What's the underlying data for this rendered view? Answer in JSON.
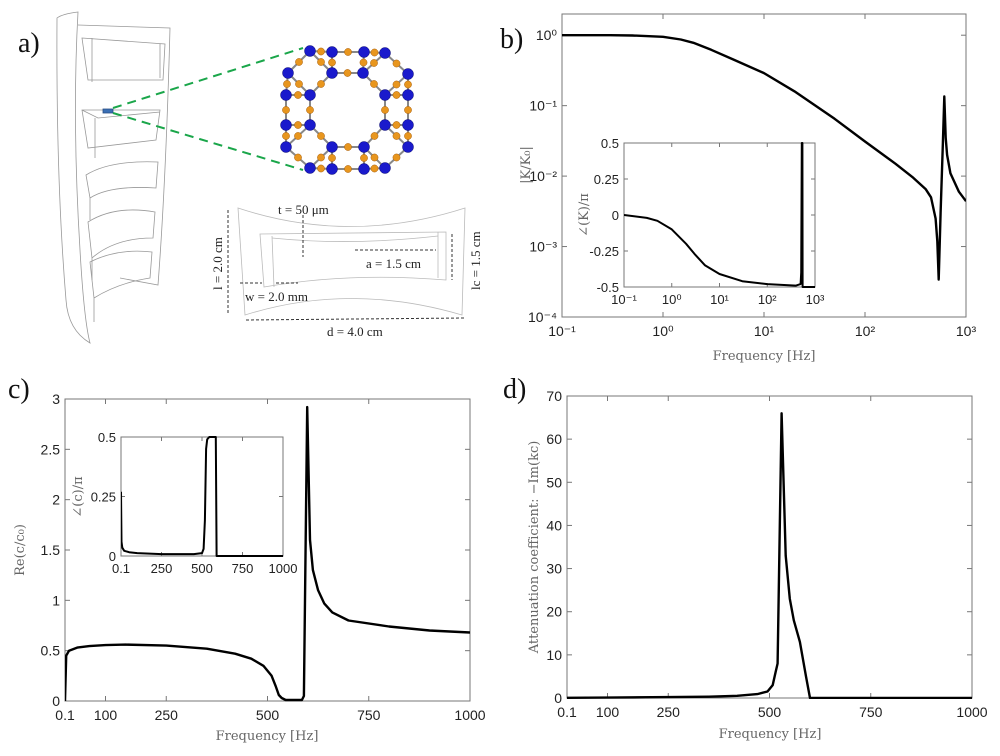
{
  "panel_labels": {
    "a": "a)",
    "b": "b)",
    "c": "c)",
    "d": "d)"
  },
  "illustration": {
    "dimensions": {
      "t": "t = 50 μm",
      "a": "a = 1.5 cm",
      "l": "l = 2.0 cm",
      "lc": "lc = 1.5 cm",
      "w": "w = 2.0 mm",
      "d": "d = 4.0 cm"
    },
    "colors": {
      "atom_blue": "#1a1acc",
      "atom_orange": "#e8961e",
      "zoom_lines": "#1aa64a",
      "highlight": "#3a6fb5"
    }
  },
  "chart_data": [
    {
      "id": "b_main",
      "type": "line",
      "xscale": "log",
      "yscale": "log",
      "xlabel": "Frequency [Hz]",
      "ylabel": "|K/K₀|",
      "xlim": [
        0.1,
        1000
      ],
      "ylim": [
        0.0001,
        2
      ],
      "xticks": [
        0.1,
        1,
        10,
        100,
        1000
      ],
      "xticklabels": [
        "10⁻¹",
        "10⁰",
        "10¹",
        "10²",
        "10³"
      ],
      "yticks": [
        0.0001,
        0.001,
        0.01,
        0.1,
        1
      ],
      "yticklabels": [
        "10⁻⁴",
        "10⁻³",
        "10⁻²",
        "10⁻¹",
        "10⁰"
      ],
      "x": [
        0.1,
        0.3,
        0.5,
        1,
        1.5,
        2,
        3,
        5,
        10,
        20,
        50,
        100,
        200,
        300,
        400,
        450,
        500,
        520,
        537,
        560,
        590,
        610,
        630,
        650,
        700,
        850,
        1000
      ],
      "y": [
        1,
        1,
        0.99,
        0.95,
        0.87,
        0.78,
        0.62,
        0.45,
        0.29,
        0.16,
        0.065,
        0.031,
        0.015,
        0.0095,
        0.0065,
        0.005,
        0.0025,
        0.0012,
        0.00034,
        0.003,
        0.03,
        0.135,
        0.035,
        0.02,
        0.011,
        0.006,
        0.0044
      ]
    },
    {
      "id": "b_inset",
      "type": "line",
      "xscale": "log",
      "yscale": "linear",
      "xlabel": "",
      "ylabel": "∠(K)/π",
      "xlim": [
        0.1,
        1000
      ],
      "ylim": [
        -0.5,
        0.5
      ],
      "xticks": [
        0.1,
        1,
        10,
        100,
        1000
      ],
      "xticklabels": [
        "10⁻¹",
        "10⁰",
        "10¹",
        "10²",
        "10³"
      ],
      "yticks": [
        -0.5,
        -0.25,
        0,
        0.25,
        0.5
      ],
      "yticklabels": [
        "-0.5",
        "-0.25",
        "0",
        "0.25",
        "0.5"
      ],
      "x": [
        0.1,
        0.3,
        0.5,
        1,
        2,
        3,
        5,
        10,
        30,
        100,
        400,
        500,
        515,
        530,
        545,
        550,
        1000
      ],
      "y": [
        0,
        -0.02,
        -0.04,
        -0.1,
        -0.2,
        -0.27,
        -0.35,
        -0.41,
        -0.46,
        -0.48,
        -0.49,
        -0.48,
        -0.4,
        0.5,
        0.5,
        -0.5,
        -0.5
      ]
    },
    {
      "id": "c_main",
      "type": "line",
      "xscale": "linear",
      "yscale": "linear",
      "xlabel": "Frequency [Hz]",
      "ylabel": "Re(c/c₀)",
      "xlim": [
        0,
        1000
      ],
      "ylim": [
        0,
        3
      ],
      "xticks": [
        0.1,
        100,
        250,
        500,
        750,
        1000
      ],
      "xticklabels": [
        "0.1",
        "100",
        "250",
        "500",
        "750",
        "1000"
      ],
      "yticks": [
        0,
        0.5,
        1,
        1.5,
        2,
        2.5,
        3
      ],
      "yticklabels": [
        "0",
        "0.5",
        "1",
        "1.5",
        "2",
        "2.5",
        "3"
      ],
      "x": [
        0.1,
        3,
        10,
        30,
        60,
        100,
        150,
        250,
        350,
        420,
        460,
        490,
        510,
        520,
        528,
        535,
        545,
        560,
        585,
        590,
        598,
        605,
        612,
        625,
        640,
        660,
        700,
        800,
        900,
        1000
      ],
      "y": [
        0.0,
        0.45,
        0.5,
        0.53,
        0.545,
        0.555,
        0.56,
        0.55,
        0.52,
        0.47,
        0.42,
        0.35,
        0.25,
        0.15,
        0.06,
        0.03,
        0.01,
        0.01,
        0.01,
        0.05,
        2.92,
        1.6,
        1.3,
        1.1,
        0.97,
        0.88,
        0.8,
        0.74,
        0.7,
        0.68
      ]
    },
    {
      "id": "c_inset",
      "type": "line",
      "xscale": "linear",
      "yscale": "linear",
      "xlabel": "",
      "ylabel": "∠(c)/π",
      "xlim": [
        0,
        1000
      ],
      "ylim": [
        0,
        0.5
      ],
      "xticks": [
        0.1,
        250,
        500,
        750,
        1000
      ],
      "xticklabels": [
        "0.1",
        "250",
        "500",
        "750",
        "1000"
      ],
      "yticks": [
        0,
        0.25,
        0.5
      ],
      "yticklabels": [
        "0",
        "0.25",
        "0.5"
      ],
      "x": [
        0.1,
        3,
        8,
        20,
        50,
        100,
        250,
        450,
        500,
        510,
        518,
        525,
        532,
        545,
        585,
        590,
        600,
        1000
      ],
      "y": [
        0.27,
        0.06,
        0.035,
        0.022,
        0.016,
        0.012,
        0.008,
        0.008,
        0.012,
        0.03,
        0.15,
        0.45,
        0.49,
        0.5,
        0.5,
        0.0,
        0.0,
        0.0
      ]
    },
    {
      "id": "d_main",
      "type": "line",
      "xscale": "linear",
      "yscale": "linear",
      "xlabel": "Frequency [Hz]",
      "ylabel": "Attenuation coefficient: −Im(kc)",
      "xlim": [
        0,
        1000
      ],
      "ylim": [
        0,
        70
      ],
      "xticks": [
        0.1,
        100,
        250,
        500,
        750,
        1000
      ],
      "xticklabels": [
        "0.1",
        "100",
        "250",
        "500",
        "750",
        "1000"
      ],
      "yticks": [
        0,
        10,
        20,
        30,
        40,
        50,
        60,
        70
      ],
      "yticklabels": [
        "0",
        "10",
        "20",
        "30",
        "40",
        "50",
        "60",
        "70"
      ],
      "x": [
        0.1,
        100,
        250,
        350,
        420,
        470,
        495,
        508,
        515,
        520,
        530,
        540,
        550,
        560,
        575,
        590,
        600,
        610,
        1000
      ],
      "y": [
        0.05,
        0.1,
        0.2,
        0.3,
        0.5,
        0.9,
        1.5,
        3,
        6,
        8,
        66,
        33,
        23,
        18,
        13,
        5,
        0,
        0,
        0
      ]
    }
  ]
}
